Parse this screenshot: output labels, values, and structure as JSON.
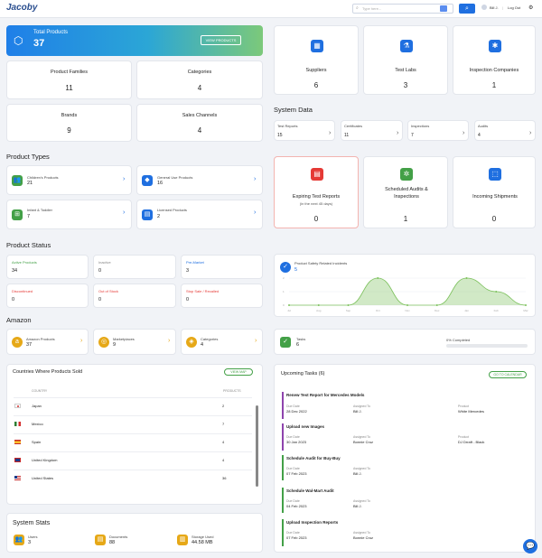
{
  "header": {
    "logo": "Jacoby",
    "search_placeholder": "Type here...",
    "user": "Bill J.",
    "logout": "Log Out"
  },
  "total_products": {
    "label": "Total Products",
    "value": "37",
    "button": "VIEW PRODUCTS"
  },
  "stats": [
    {
      "label": "Product Families",
      "value": "11"
    },
    {
      "label": "Categories",
      "value": "4"
    },
    {
      "label": "Brands",
      "value": "9"
    },
    {
      "label": "Sales Channels",
      "value": "4"
    }
  ],
  "partners": [
    {
      "label": "Suppliers",
      "value": "6",
      "icon": "building-icon"
    },
    {
      "label": "Test Labs",
      "value": "3",
      "icon": "flask-icon"
    },
    {
      "label": "Inspection Companies",
      "value": "1",
      "icon": "gear-icon"
    }
  ],
  "system_data": {
    "title": "System Data",
    "items": [
      {
        "label": "Test Reports",
        "value": "15"
      },
      {
        "label": "Certificates",
        "value": "11"
      },
      {
        "label": "Inspections",
        "value": "7"
      },
      {
        "label": "Audits",
        "value": "4"
      }
    ]
  },
  "product_types": {
    "title": "Product Types",
    "items": [
      {
        "label": "Children's Products",
        "value": "21"
      },
      {
        "label": "General Use Products",
        "value": "16"
      },
      {
        "label": "Infant & Toddler",
        "value": "7"
      },
      {
        "label": "Licensed Products",
        "value": "2"
      }
    ]
  },
  "alerts": [
    {
      "label": "Expiring Test Reports",
      "sub": "(in the next 45 days)",
      "value": "0",
      "color": "#e53935"
    },
    {
      "label": "Scheduled Audits & Inspections",
      "sub": "",
      "value": "1",
      "color": "#43a047"
    },
    {
      "label": "Incoming Shipments",
      "sub": "",
      "value": "0",
      "color": "#1f6fe0"
    }
  ],
  "product_status": {
    "title": "Product Status",
    "items": [
      {
        "label": "Active Products",
        "value": "34",
        "color": "#43a047"
      },
      {
        "label": "Inactive",
        "value": "0",
        "color": "#888888"
      },
      {
        "label": "Pre-Market",
        "value": "3",
        "color": "#1f6fe0"
      },
      {
        "label": "Discontinued",
        "value": "0",
        "color": "#e53935"
      },
      {
        "label": "Out of Stock",
        "value": "0",
        "color": "#e53935"
      },
      {
        "label": "Stop Sale / Recalled",
        "value": "0",
        "color": "#e53935"
      }
    ]
  },
  "incidents": {
    "title": "Product Safety Related Incidents",
    "value": "5"
  },
  "chart_data": {
    "type": "area",
    "categories": [
      "Jul",
      "Aug",
      "Sep",
      "Oct",
      "Nov",
      "Dec",
      "Jan",
      "Feb",
      "Mar"
    ],
    "values": [
      0,
      0,
      0,
      2,
      0,
      0,
      2,
      1,
      0
    ],
    "ylim": [
      0,
      2
    ],
    "yticks": [
      "2",
      "1",
      "0"
    ],
    "color": "#7cc15c"
  },
  "amazon": {
    "title": "Amazon",
    "items": [
      {
        "label": "Amazon Products",
        "value": "37"
      },
      {
        "label": "Marketplaces",
        "value": "9"
      },
      {
        "label": "Categories",
        "value": "4"
      }
    ]
  },
  "tasks_card": {
    "label": "Tasks",
    "value": "6",
    "progress_label": "0% Completed",
    "progress": 0
  },
  "countries": {
    "title": "Countries Where Products Sold",
    "button": "VIEW MAP",
    "col_country": "COUNTRY",
    "col_products": "PRODUCTS",
    "rows": [
      {
        "name": "Japan",
        "value": "2"
      },
      {
        "name": "Mexico",
        "value": "7"
      },
      {
        "name": "Spain",
        "value": "4"
      },
      {
        "name": "United Kingdom",
        "value": "4"
      },
      {
        "name": "United States",
        "value": "36"
      }
    ]
  },
  "upcoming": {
    "title": "Upcoming Tasks (6)",
    "button": "GO TO CALENDAR",
    "due_label": "Due Date",
    "assigned_label": "Assigned To",
    "product_label": "Product",
    "items": [
      {
        "title": "Renew Test Report for Mercedes Models",
        "due": "28 Dec 2022",
        "assigned": "Bill J.",
        "product": "White Mercedes",
        "color": "#8e44ad"
      },
      {
        "title": "Upload new Images",
        "due": "30 Jan 2023",
        "assigned": "Bonnie Cruz",
        "product": "DJ Drraft - Black",
        "color": "#8e44ad"
      },
      {
        "title": "Schedule Audit for Buy-Buy",
        "due": "07 Feb 2023",
        "assigned": "Bill J.",
        "product": "",
        "color": "#43a047"
      },
      {
        "title": "Schedule Wal-Mart Audit",
        "due": "04 Feb 2023",
        "assigned": "Bill J.",
        "product": "",
        "color": "#43a047"
      },
      {
        "title": "Upload Inspection Reports",
        "due": "07 Feb 2023",
        "assigned": "Bonnie Cruz",
        "product": "",
        "color": "#43a047"
      }
    ]
  },
  "system_stats": {
    "title": "System Stats",
    "items": [
      {
        "label": "Users",
        "value": "3"
      },
      {
        "label": "Documents",
        "value": "88"
      },
      {
        "label": "Storage Used",
        "value": "44.58 MB"
      }
    ]
  }
}
